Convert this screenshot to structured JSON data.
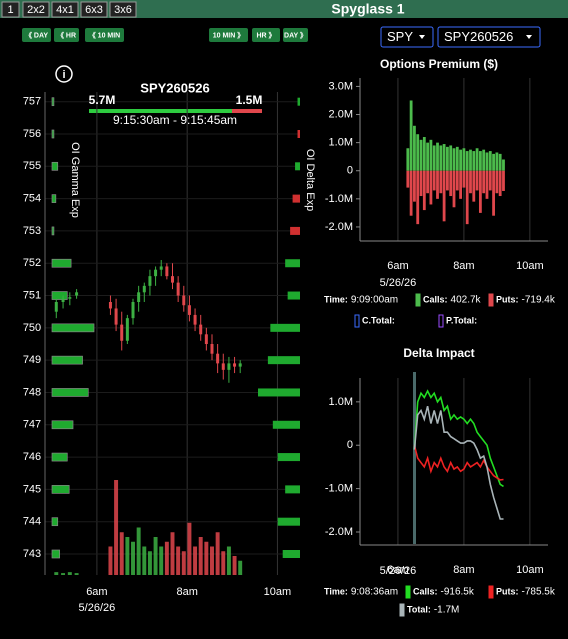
{
  "header": {
    "layouts": [
      "1",
      "2x2",
      "4x1",
      "6x3",
      "3x6"
    ],
    "title": "Spyglass 1"
  },
  "nav": {
    "back": [
      "《 DAY",
      "《 HR",
      "《 10 MIN"
    ],
    "forward": [
      "10 MIN 》",
      "HR 》",
      "DAY 》"
    ]
  },
  "selects": [
    "SPY",
    "SPY260526"
  ],
  "info_icon": "i",
  "chart_data": [
    {
      "type": "candlestick",
      "title": "SPY260526",
      "scale_labels": [
        "5.7M",
        "1.5M"
      ],
      "time_range": "9:15:30am - 9:15:45am",
      "axis_labels": [
        "OI Gamma Exp",
        "OI Delta Exp"
      ],
      "date": "5/26/26",
      "x": [
        5.1,
        5.25,
        5.4,
        5.55,
        6.3,
        6.425,
        6.55,
        6.675,
        6.8,
        6.925,
        7.05,
        7.175,
        7.3,
        7.425,
        7.55,
        7.675,
        7.8,
        7.925,
        8.05,
        8.175,
        8.3,
        8.425,
        8.55,
        8.675,
        8.8,
        8.925,
        9.05,
        9.175
      ],
      "open": [
        750.5,
        750.8,
        750.9,
        751.0,
        750.8,
        750.6,
        750.1,
        749.6,
        750.3,
        750.8,
        751.1,
        751.3,
        751.6,
        751.8,
        751.9,
        751.6,
        751.4,
        751.0,
        750.7,
        750.4,
        750.1,
        749.8,
        749.5,
        749.2,
        748.9,
        748.7,
        748.9,
        748.8
      ],
      "high": [
        750.9,
        751.0,
        751.1,
        751.2,
        751.0,
        750.9,
        750.5,
        750.4,
        750.9,
        751.3,
        751.4,
        751.8,
        751.9,
        752.1,
        752.0,
        752.0,
        751.6,
        751.3,
        751.0,
        750.6,
        750.4,
        750.0,
        749.8,
        749.5,
        749.2,
        749.1,
        749.1,
        749.0
      ],
      "low": [
        750.3,
        750.6,
        750.7,
        750.9,
        750.4,
        749.9,
        749.3,
        749.5,
        750.1,
        750.5,
        750.8,
        751.0,
        751.3,
        751.6,
        751.5,
        751.2,
        750.8,
        750.5,
        750.2,
        749.9,
        749.6,
        749.3,
        749.0,
        748.6,
        748.4,
        748.3,
        748.6,
        748.6
      ],
      "close": [
        750.8,
        750.9,
        750.95,
        751.1,
        750.6,
        750.1,
        749.6,
        750.3,
        750.8,
        751.1,
        751.3,
        751.6,
        751.8,
        751.9,
        751.6,
        751.4,
        751.0,
        750.7,
        750.4,
        750.1,
        749.8,
        749.5,
        749.2,
        748.9,
        748.7,
        748.9,
        748.8,
        748.9
      ],
      "volume": [
        3,
        2,
        3,
        2,
        30,
        100,
        45,
        40,
        35,
        50,
        30,
        25,
        40,
        30,
        35,
        45,
        30,
        25,
        55,
        30,
        40,
        35,
        30,
        45,
        25,
        30,
        20,
        15
      ],
      "gamma": [
        0.4,
        0.3,
        0.9,
        0.8,
        1.1,
        1.9,
        1.6,
        2.2,
        0.8,
        1.0,
        0.1,
        0.2,
        0.3,
        0.1,
        0.1
      ],
      "delta": [
        0.7,
        0.9,
        0.6,
        0.9,
        1.1,
        1.7,
        1.3,
        1.2,
        0.5,
        0.6,
        -0.4,
        -0.3,
        0.2,
        -0.1,
        0.1
      ],
      "xlim": [
        4.85,
        10.5
      ],
      "ylim": [
        742.35,
        757.3
      ],
      "yticks": [
        743,
        744,
        745,
        746,
        747,
        748,
        749,
        750,
        751,
        752,
        753,
        754,
        755,
        756,
        757
      ],
      "xticks": [
        {
          "value": 6,
          "label": "6am"
        },
        {
          "value": 8,
          "label": "8am"
        },
        {
          "value": 10,
          "label": "10am"
        }
      ],
      "colors": {
        "up": "#3cb043",
        "down": "#e0474c",
        "volume_up": "#3cb043",
        "volume_down": "#e0474c"
      }
    },
    {
      "type": "bar",
      "title": "Options Premium ($)",
      "date": "5/26/26",
      "x": [
        6.3,
        6.4,
        6.5,
        6.6,
        6.7,
        6.8,
        6.9,
        7.0,
        7.1,
        7.2,
        7.3,
        7.4,
        7.5,
        7.6,
        7.7,
        7.8,
        7.9,
        8.0,
        8.1,
        8.2,
        8.3,
        8.4,
        8.5,
        8.6,
        8.7,
        8.8,
        8.9,
        9.0,
        9.1,
        9.2
      ],
      "series": [
        {
          "color": "#4cbb4c",
          "values": [
            0.8,
            2.5,
            1.6,
            1.3,
            1.1,
            1.2,
            1.0,
            1.1,
            0.9,
            1.0,
            0.9,
            0.95,
            0.85,
            0.9,
            0.8,
            0.85,
            0.75,
            0.8,
            0.7,
            0.75,
            0.7,
            0.8,
            0.7,
            0.75,
            0.65,
            0.7,
            0.6,
            0.65,
            0.6,
            0.4
          ]
        },
        {
          "color": "#e0474c",
          "values": [
            -0.6,
            -1.6,
            -1.1,
            -1.9,
            -0.9,
            -1.4,
            -0.8,
            -1.2,
            -0.7,
            -1.0,
            -0.8,
            -1.8,
            -0.7,
            -0.9,
            -1.3,
            -0.7,
            -1.0,
            -0.6,
            -1.9,
            -0.8,
            -1.1,
            -0.7,
            -1.5,
            -0.8,
            -1.0,
            -0.7,
            -1.6,
            -0.8,
            -0.9,
            -0.72
          ]
        }
      ],
      "xlim": [
        4.85,
        10.55
      ],
      "ylim": [
        -2.5,
        3.3
      ],
      "yticks": [
        {
          "value": -2,
          "label": "-2.0M"
        },
        {
          "value": -1,
          "label": "-1.0M"
        },
        0,
        {
          "value": 1,
          "label": "1.0M"
        },
        {
          "value": 2,
          "label": "2.0M"
        },
        {
          "value": 3,
          "label": "3.0M"
        }
      ],
      "xticks": [
        {
          "value": 6,
          "label": "6am"
        },
        {
          "value": 8,
          "label": "8am"
        },
        {
          "value": 10,
          "label": "10am"
        }
      ],
      "readout": [
        {
          "label": "Time:",
          "value": "9:09:00am"
        },
        {
          "label": "Calls:",
          "value": "402.7k",
          "color": "#4cbb4c"
        },
        {
          "label": "Puts:",
          "value": "-719.4k",
          "color": "#e0474c"
        },
        {
          "label": "C.Total:",
          "color": "#3b6cff"
        },
        {
          "label": "P.Total:",
          "color": "#9b4dff"
        }
      ]
    },
    {
      "type": "line",
      "title": "Delta Impact",
      "date": "5/26/26",
      "x": [
        6.5,
        6.6,
        6.7,
        6.8,
        6.9,
        7.0,
        7.1,
        7.2,
        7.3,
        7.4,
        7.5,
        7.6,
        7.7,
        7.8,
        7.9,
        8.0,
        8.1,
        8.2,
        8.3,
        8.4,
        8.5,
        8.6,
        8.7,
        8.8,
        8.9,
        9.0,
        9.1,
        9.2
      ],
      "series": [
        {
          "color": "#22dd22",
          "values": [
            -0.1,
            1.0,
            1.2,
            1.1,
            1.25,
            1.1,
            1.2,
            1.0,
            1.1,
            0.8,
            0.9,
            0.6,
            0.7,
            0.6,
            0.65,
            0.6,
            0.5,
            0.6,
            0.5,
            0.3,
            0.2,
            0.1,
            0.0,
            -0.3,
            -0.5,
            -0.7,
            -0.9,
            -0.95
          ]
        },
        {
          "color": "#ee2222",
          "values": [
            0.0,
            -0.3,
            -0.4,
            -0.5,
            -0.3,
            -0.6,
            -0.4,
            -0.5,
            -0.3,
            -0.5,
            -0.6,
            -0.4,
            -0.55,
            -0.5,
            -0.6,
            -0.55,
            -0.4,
            -0.5,
            -0.45,
            -0.4,
            -0.5,
            -0.35,
            -0.5,
            -0.6,
            -0.7,
            -0.75,
            -0.8,
            -0.79
          ]
        },
        {
          "color": "#a9b4b8",
          "values": [
            -0.1,
            0.7,
            0.8,
            0.6,
            0.9,
            0.5,
            0.8,
            0.5,
            0.8,
            0.3,
            0.3,
            0.2,
            0.15,
            0.1,
            0.05,
            0.05,
            0.1,
            0.1,
            0.05,
            -0.1,
            -0.3,
            -0.25,
            -0.5,
            -0.9,
            -1.2,
            -1.45,
            -1.7,
            -1.7
          ]
        }
      ],
      "xlim": [
        4.85,
        10.55
      ],
      "ylim": [
        -2.3,
        1.55
      ],
      "yticks": [
        {
          "value": -2,
          "label": "-2.0M"
        },
        {
          "value": -1,
          "label": "-1.0M"
        },
        0,
        {
          "value": 1,
          "label": "1.0M"
        }
      ],
      "xticks": [
        {
          "value": 6,
          "label": "6am"
        },
        {
          "value": 8,
          "label": "8am"
        },
        {
          "value": 10,
          "label": "10am"
        }
      ],
      "readout": [
        {
          "label": "Time:",
          "value": "9:08:36am"
        },
        {
          "label": "Calls:",
          "value": "-916.5k",
          "color": "#22dd22"
        },
        {
          "label": "Puts:",
          "value": "-785.5k",
          "color": "#ee2222"
        },
        {
          "label": "Total:",
          "value": "-1.7M",
          "color": "#a9b4b8"
        }
      ]
    }
  ]
}
